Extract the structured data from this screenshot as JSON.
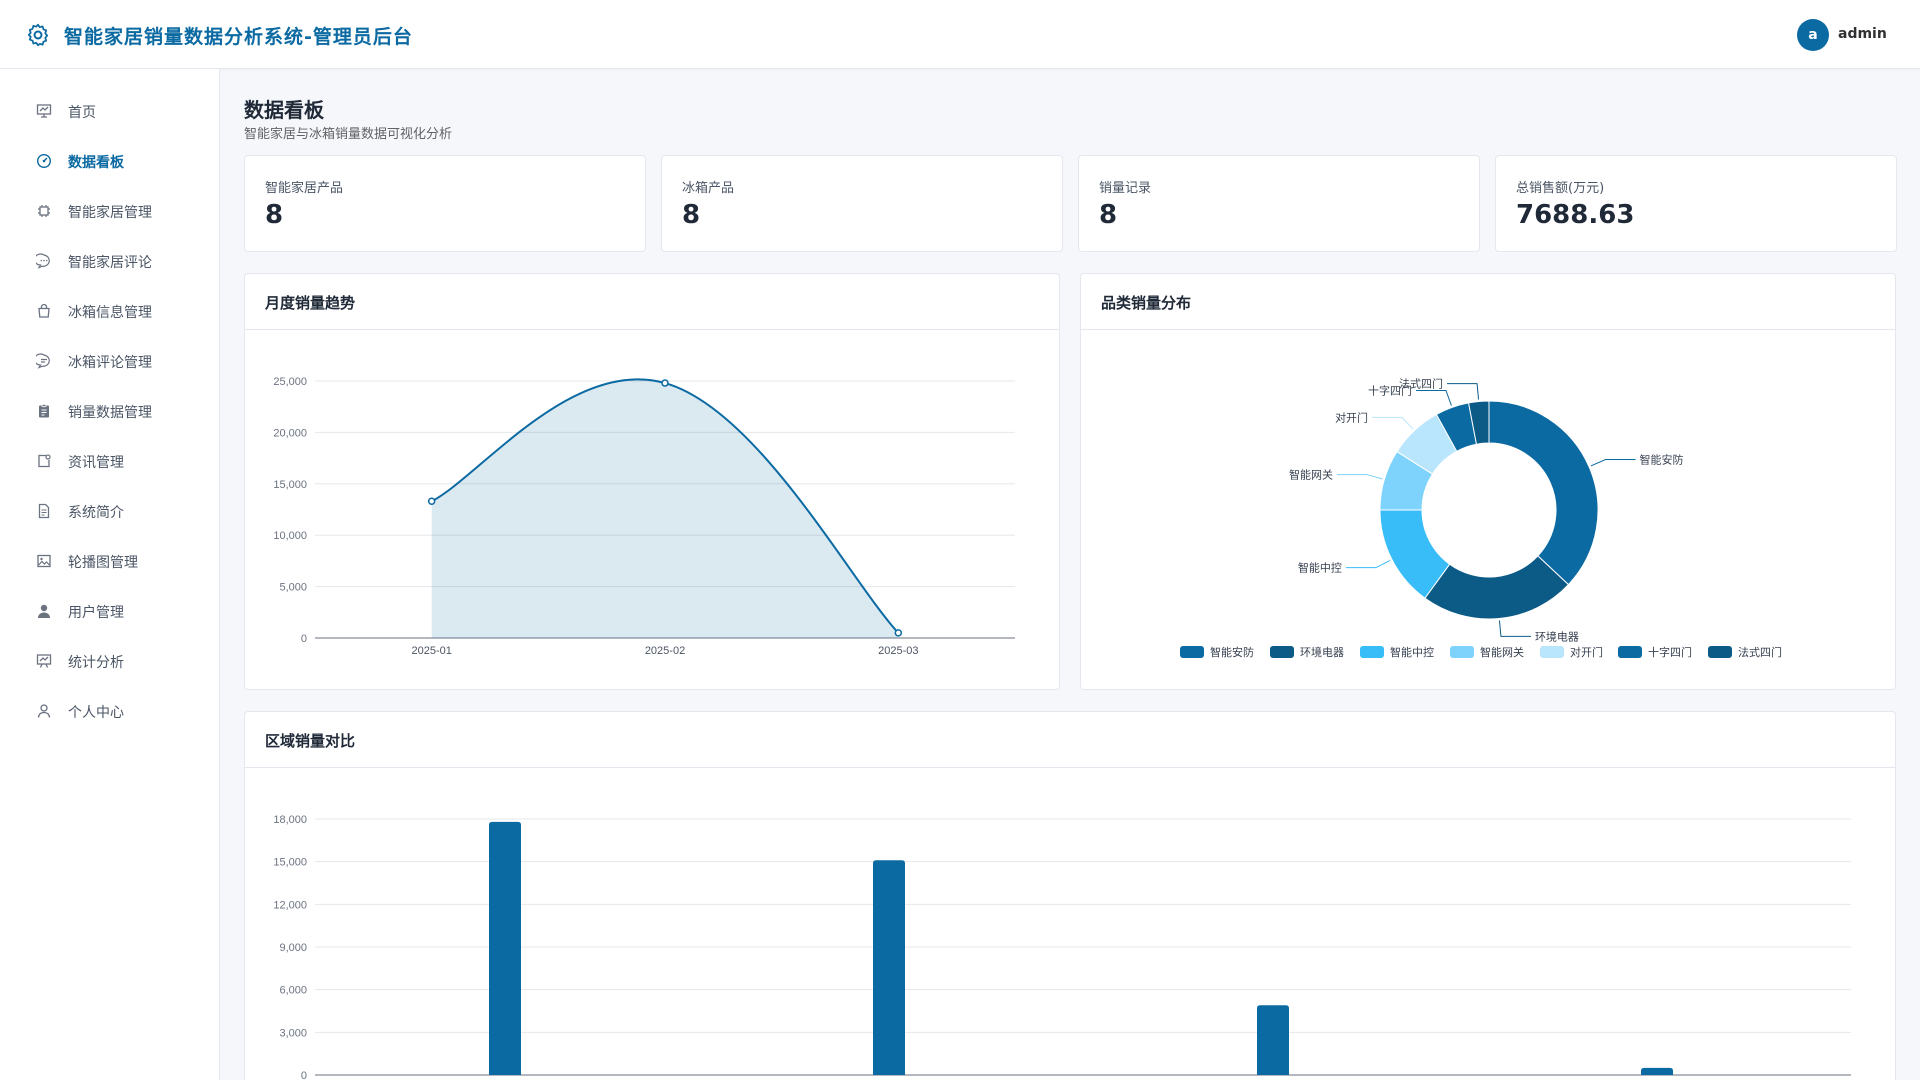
{
  "header": {
    "title": "智能家居销量数据分析系统-管理员后台",
    "avatar_letter": "a",
    "username": "admin"
  },
  "sidebar": {
    "items": [
      {
        "label": "首页",
        "icon": "dashboard-icon"
      },
      {
        "label": "数据看板",
        "icon": "gauge-icon",
        "active": true
      },
      {
        "label": "智能家居管理",
        "icon": "chip-icon"
      },
      {
        "label": "智能家居评论",
        "icon": "chat-dots-icon"
      },
      {
        "label": "冰箱信息管理",
        "icon": "bag-icon"
      },
      {
        "label": "冰箱评论管理",
        "icon": "chat-line-icon"
      },
      {
        "label": "销量数据管理",
        "icon": "clipboard-icon"
      },
      {
        "label": "资讯管理",
        "icon": "news-icon"
      },
      {
        "label": "系统简介",
        "icon": "document-icon"
      },
      {
        "label": "轮播图管理",
        "icon": "picture-icon"
      },
      {
        "label": "用户管理",
        "icon": "user-filled-icon"
      },
      {
        "label": "统计分析",
        "icon": "presentation-icon"
      },
      {
        "label": "个人中心",
        "icon": "user-icon"
      }
    ]
  },
  "page": {
    "title": "数据看板",
    "subtitle": "智能家居与冰箱销量数据可视化分析"
  },
  "stats": [
    {
      "label": "智能家居产品",
      "value": "8"
    },
    {
      "label": "冰箱产品",
      "value": "8"
    },
    {
      "label": "销量记录",
      "value": "8"
    },
    {
      "label": "总销售额(万元)",
      "value": "7688.63"
    }
  ],
  "panels": {
    "trend_title": "月度销量趋势",
    "category_title": "品类销量分布",
    "region_title": "区域销量对比"
  },
  "colors": {
    "primary": "#0b6aa2",
    "dark_blue": "#0c5a86",
    "light_blue": "#38bdf8",
    "lighter_blue": "#7dd3fc",
    "pale_blue": "#bae6fd"
  },
  "chart_data": [
    {
      "type": "area",
      "title": "月度销量趋势",
      "categories": [
        "2025-01",
        "2025-02",
        "2025-03"
      ],
      "series": [
        {
          "values": [
            13300,
            24800,
            500
          ]
        }
      ],
      "ylim": [
        0,
        25000
      ],
      "yticks": [
        "0",
        "5,000",
        "10,000",
        "15,000",
        "20,000",
        "25,000"
      ],
      "grid": true
    },
    {
      "type": "pie",
      "title": "品类销量分布",
      "labels": [
        "智能安防",
        "环境电器",
        "智能中控",
        "智能网关",
        "对开门",
        "十字四门",
        "法式四门"
      ],
      "values": [
        37,
        23,
        15,
        9,
        8,
        5,
        3
      ],
      "colors": [
        "#0b6aa2",
        "#0c5a86",
        "#38bdf8",
        "#7dd3fc",
        "#bae6fd",
        "#0b6aa2",
        "#0c5a86"
      ],
      "legend": "bottom"
    },
    {
      "type": "bar",
      "title": "区域销量对比",
      "categories": [
        "",
        "",
        "",
        ""
      ],
      "values": [
        17800,
        15100,
        4900,
        500
      ],
      "ylim": [
        0,
        18000
      ],
      "yticks": [
        "0",
        "3,000",
        "6,000",
        "9,000",
        "12,000",
        "15,000",
        "18,000"
      ],
      "grid": true
    }
  ]
}
